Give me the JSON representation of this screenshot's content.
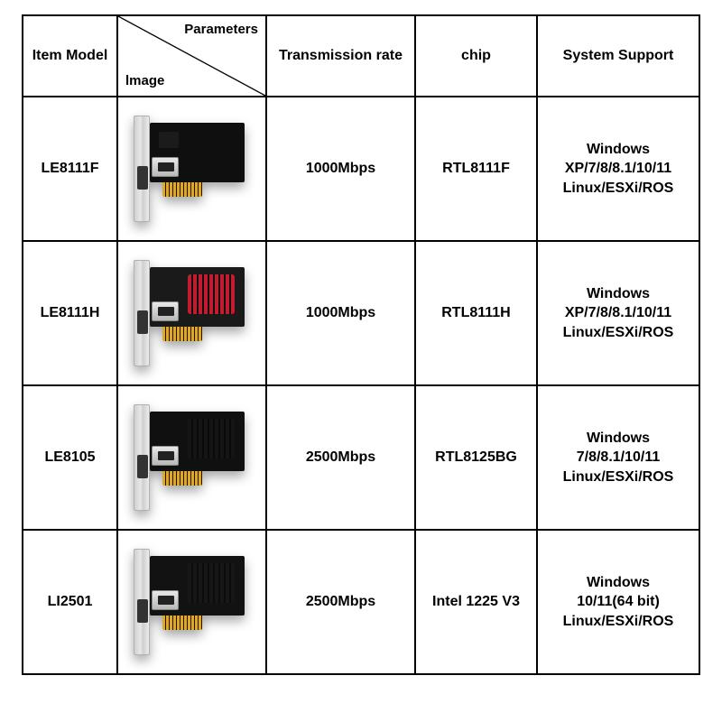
{
  "table": {
    "type": "table",
    "border_color": "#000000",
    "background_color": "#ffffff",
    "text_color": "#000000",
    "font_size_pt": 12,
    "header_font_size_pt": 12,
    "header": {
      "item_model": "Item Model",
      "image_params_top": "Parameters",
      "image_params_bottom": "lmage",
      "transmission_rate": "Transmission rate",
      "chip": "chip",
      "system_support": "System Support"
    },
    "columns_width_pct": [
      14,
      22,
      22,
      18,
      24
    ],
    "rows": [
      {
        "model": "LE8111F",
        "rate": "1000Mbps",
        "chip": "RTL8111F",
        "support": [
          "Windows",
          "XP/7/8/8.1/10/11",
          "Linux/ESXi/ROS"
        ],
        "card": {
          "pcb_color": "#0f0f0f",
          "heatsink_color": null
        }
      },
      {
        "model": "LE8111H",
        "rate": "1000Mbps",
        "chip": "RTL8111H",
        "support": [
          "Windows",
          "XP/7/8/8.1/10/11",
          "Linux/ESXi/ROS"
        ],
        "card": {
          "pcb_color": "#1a1a1a",
          "heatsink_color": "#c31b2f"
        }
      },
      {
        "model": "LE8105",
        "rate": "2500Mbps",
        "chip": "RTL8125BG",
        "support": [
          "Windows",
          "7/8/8.1/10/11",
          "Linux/ESXi/ROS"
        ],
        "card": {
          "pcb_color": "#101010",
          "heatsink_color": "#151515"
        }
      },
      {
        "model": "LI2501",
        "rate": "2500Mbps",
        "chip": "Intel 1225 V3",
        "support": [
          "Windows",
          "10/11(64 bit)",
          "Linux/ESXi/ROS"
        ],
        "card": {
          "pcb_color": "#121212",
          "heatsink_color": "#171717"
        }
      }
    ]
  }
}
